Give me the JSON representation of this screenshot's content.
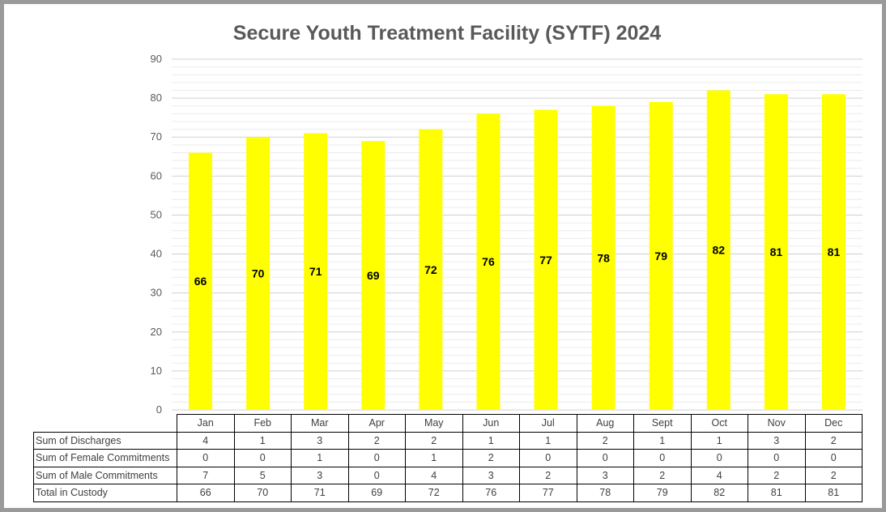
{
  "chart_data": {
    "type": "bar",
    "title": "Secure Youth Treatment Facility (SYTF) 2024",
    "categories": [
      "Jan",
      "Feb",
      "Mar",
      "Apr",
      "May",
      "Jun",
      "Jul",
      "Aug",
      "Sept",
      "Oct",
      "Nov",
      "Dec"
    ],
    "series": [
      {
        "name": "Total in Custody",
        "values": [
          66,
          70,
          71,
          69,
          72,
          76,
          77,
          78,
          79,
          82,
          81,
          81
        ]
      }
    ],
    "ylim": [
      0,
      90
    ],
    "yticks": [
      0,
      10,
      20,
      30,
      40,
      50,
      60,
      70,
      80,
      90
    ],
    "grid": true,
    "bar_color": "#ffff00",
    "data_labels": true,
    "data_table": {
      "rows": [
        {
          "label": "Sum of Discharges",
          "values": [
            4,
            1,
            3,
            2,
            2,
            1,
            1,
            2,
            1,
            1,
            3,
            2
          ]
        },
        {
          "label": "Sum of Female Commitments",
          "values": [
            0,
            0,
            1,
            0,
            1,
            2,
            0,
            0,
            0,
            0,
            0,
            0
          ]
        },
        {
          "label": "Sum of Male Commitments",
          "values": [
            7,
            5,
            3,
            0,
            4,
            3,
            2,
            3,
            2,
            4,
            2,
            2
          ]
        },
        {
          "label": "Total in Custody",
          "values": [
            66,
            70,
            71,
            69,
            72,
            76,
            77,
            78,
            79,
            82,
            81,
            81
          ]
        }
      ]
    }
  }
}
